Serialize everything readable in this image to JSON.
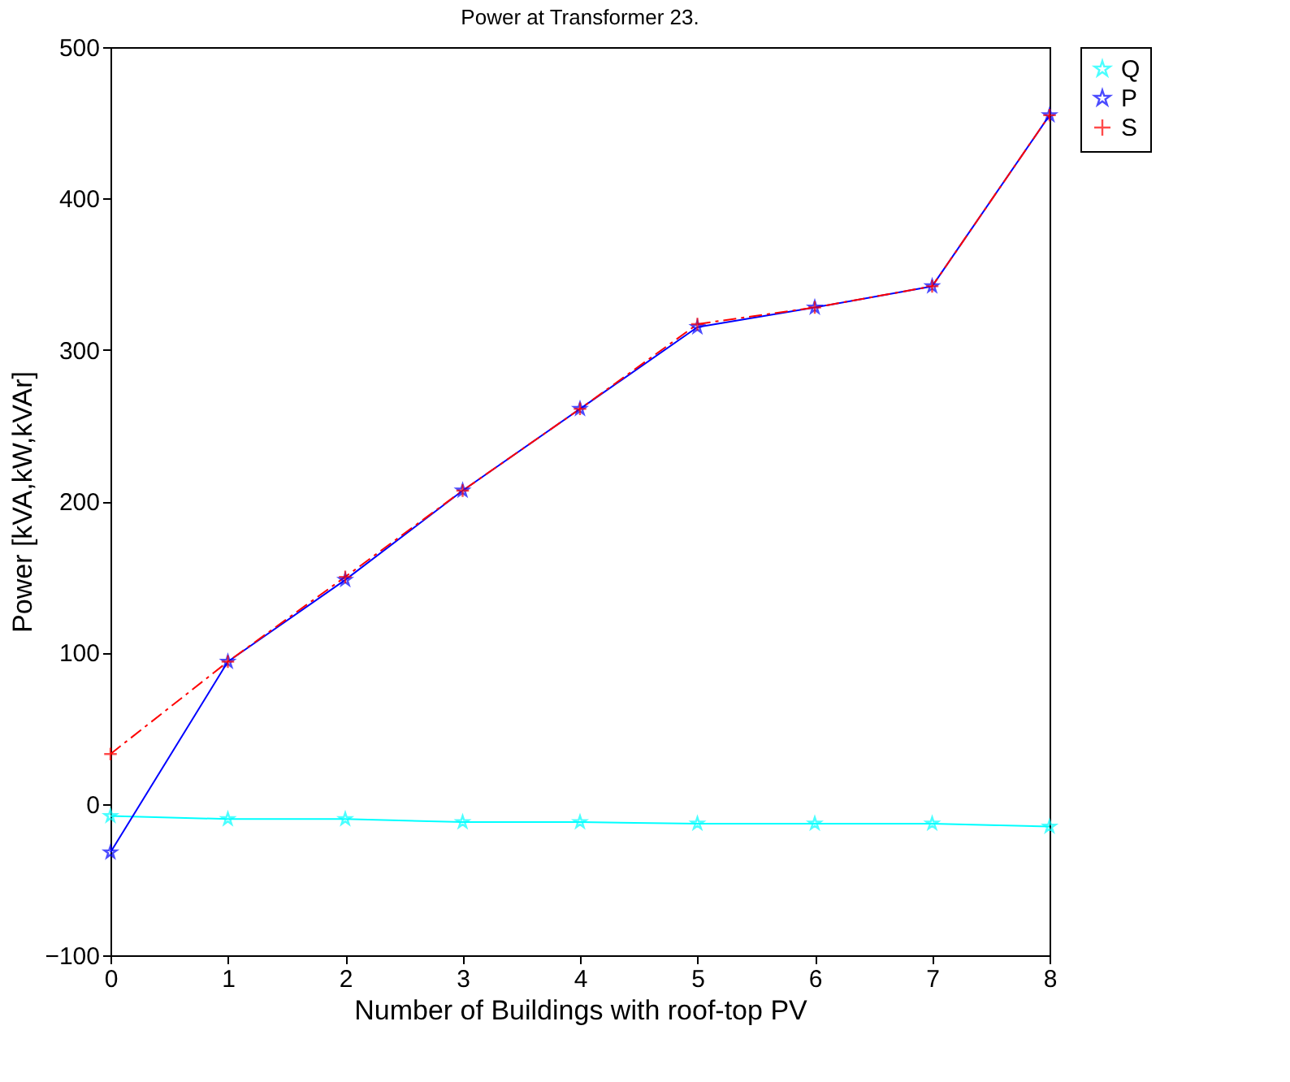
{
  "chart_data": {
    "type": "line",
    "title": "Power at Transformer 23.",
    "xlabel": "Number of Buildings with roof-top PV",
    "ylabel": "Power [kVA,kW,kVAr]",
    "x": [
      0,
      1,
      2,
      3,
      4,
      5,
      6,
      7,
      8
    ],
    "series": [
      {
        "name": "Q",
        "color": "#00ffff",
        "marker": "star",
        "line_style": "solid",
        "values": [
          -8,
          -10,
          -10,
          -12,
          -12,
          -13,
          -13,
          -13,
          -15
        ]
      },
      {
        "name": "P",
        "color": "#0000ff",
        "marker": "star",
        "line_style": "solid",
        "values": [
          -32,
          94,
          148,
          207,
          261,
          315,
          328,
          342,
          455
        ]
      },
      {
        "name": "S",
        "color": "#ff0000",
        "marker": "cross",
        "line_style": "dashed",
        "values": [
          33,
          94,
          150,
          207,
          261,
          317,
          328,
          342,
          455
        ]
      }
    ],
    "xlim": [
      0,
      8
    ],
    "xticks": [
      0,
      1,
      2,
      3,
      4,
      5,
      6,
      7,
      8
    ],
    "ylim": [
      -100,
      500
    ],
    "yticks": [
      -100,
      0,
      100,
      200,
      300,
      400,
      500
    ],
    "grid": false,
    "legend": "top right"
  }
}
